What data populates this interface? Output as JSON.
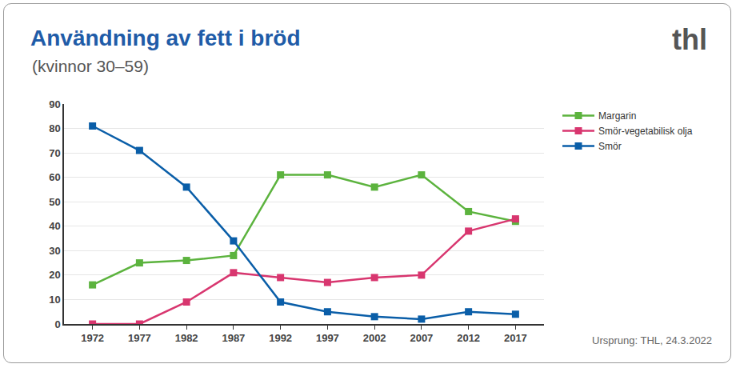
{
  "chart_data": {
    "type": "line",
    "title": "Användning av fett i bröd",
    "subtitle": "(kvinnor 30–59)",
    "logo": "thl",
    "source": "Ursprung: THL, 24.3.2022",
    "categories": [
      "1972",
      "1977",
      "1982",
      "1987",
      "1992",
      "1997",
      "2002",
      "2007",
      "2012",
      "2017"
    ],
    "series": [
      {
        "name": "Margarin",
        "color": "#5cb33e",
        "values": [
          16,
          25,
          26,
          28,
          61,
          61,
          56,
          61,
          46,
          42
        ]
      },
      {
        "name": "Smör-vegetabilisk olja",
        "color": "#d8366f",
        "values": [
          0,
          0,
          9,
          21,
          19,
          17,
          19,
          20,
          38,
          43
        ]
      },
      {
        "name": "Smör",
        "color": "#0a5ea8",
        "values": [
          81,
          71,
          56,
          34,
          9,
          5,
          3,
          2,
          5,
          4
        ]
      }
    ],
    "ylim": [
      0,
      90
    ],
    "yticks": [
      0,
      10,
      20,
      30,
      40,
      50,
      60,
      70,
      80,
      90
    ],
    "grid": true,
    "legend": "right",
    "marker": "square",
    "line_style": "solid"
  }
}
